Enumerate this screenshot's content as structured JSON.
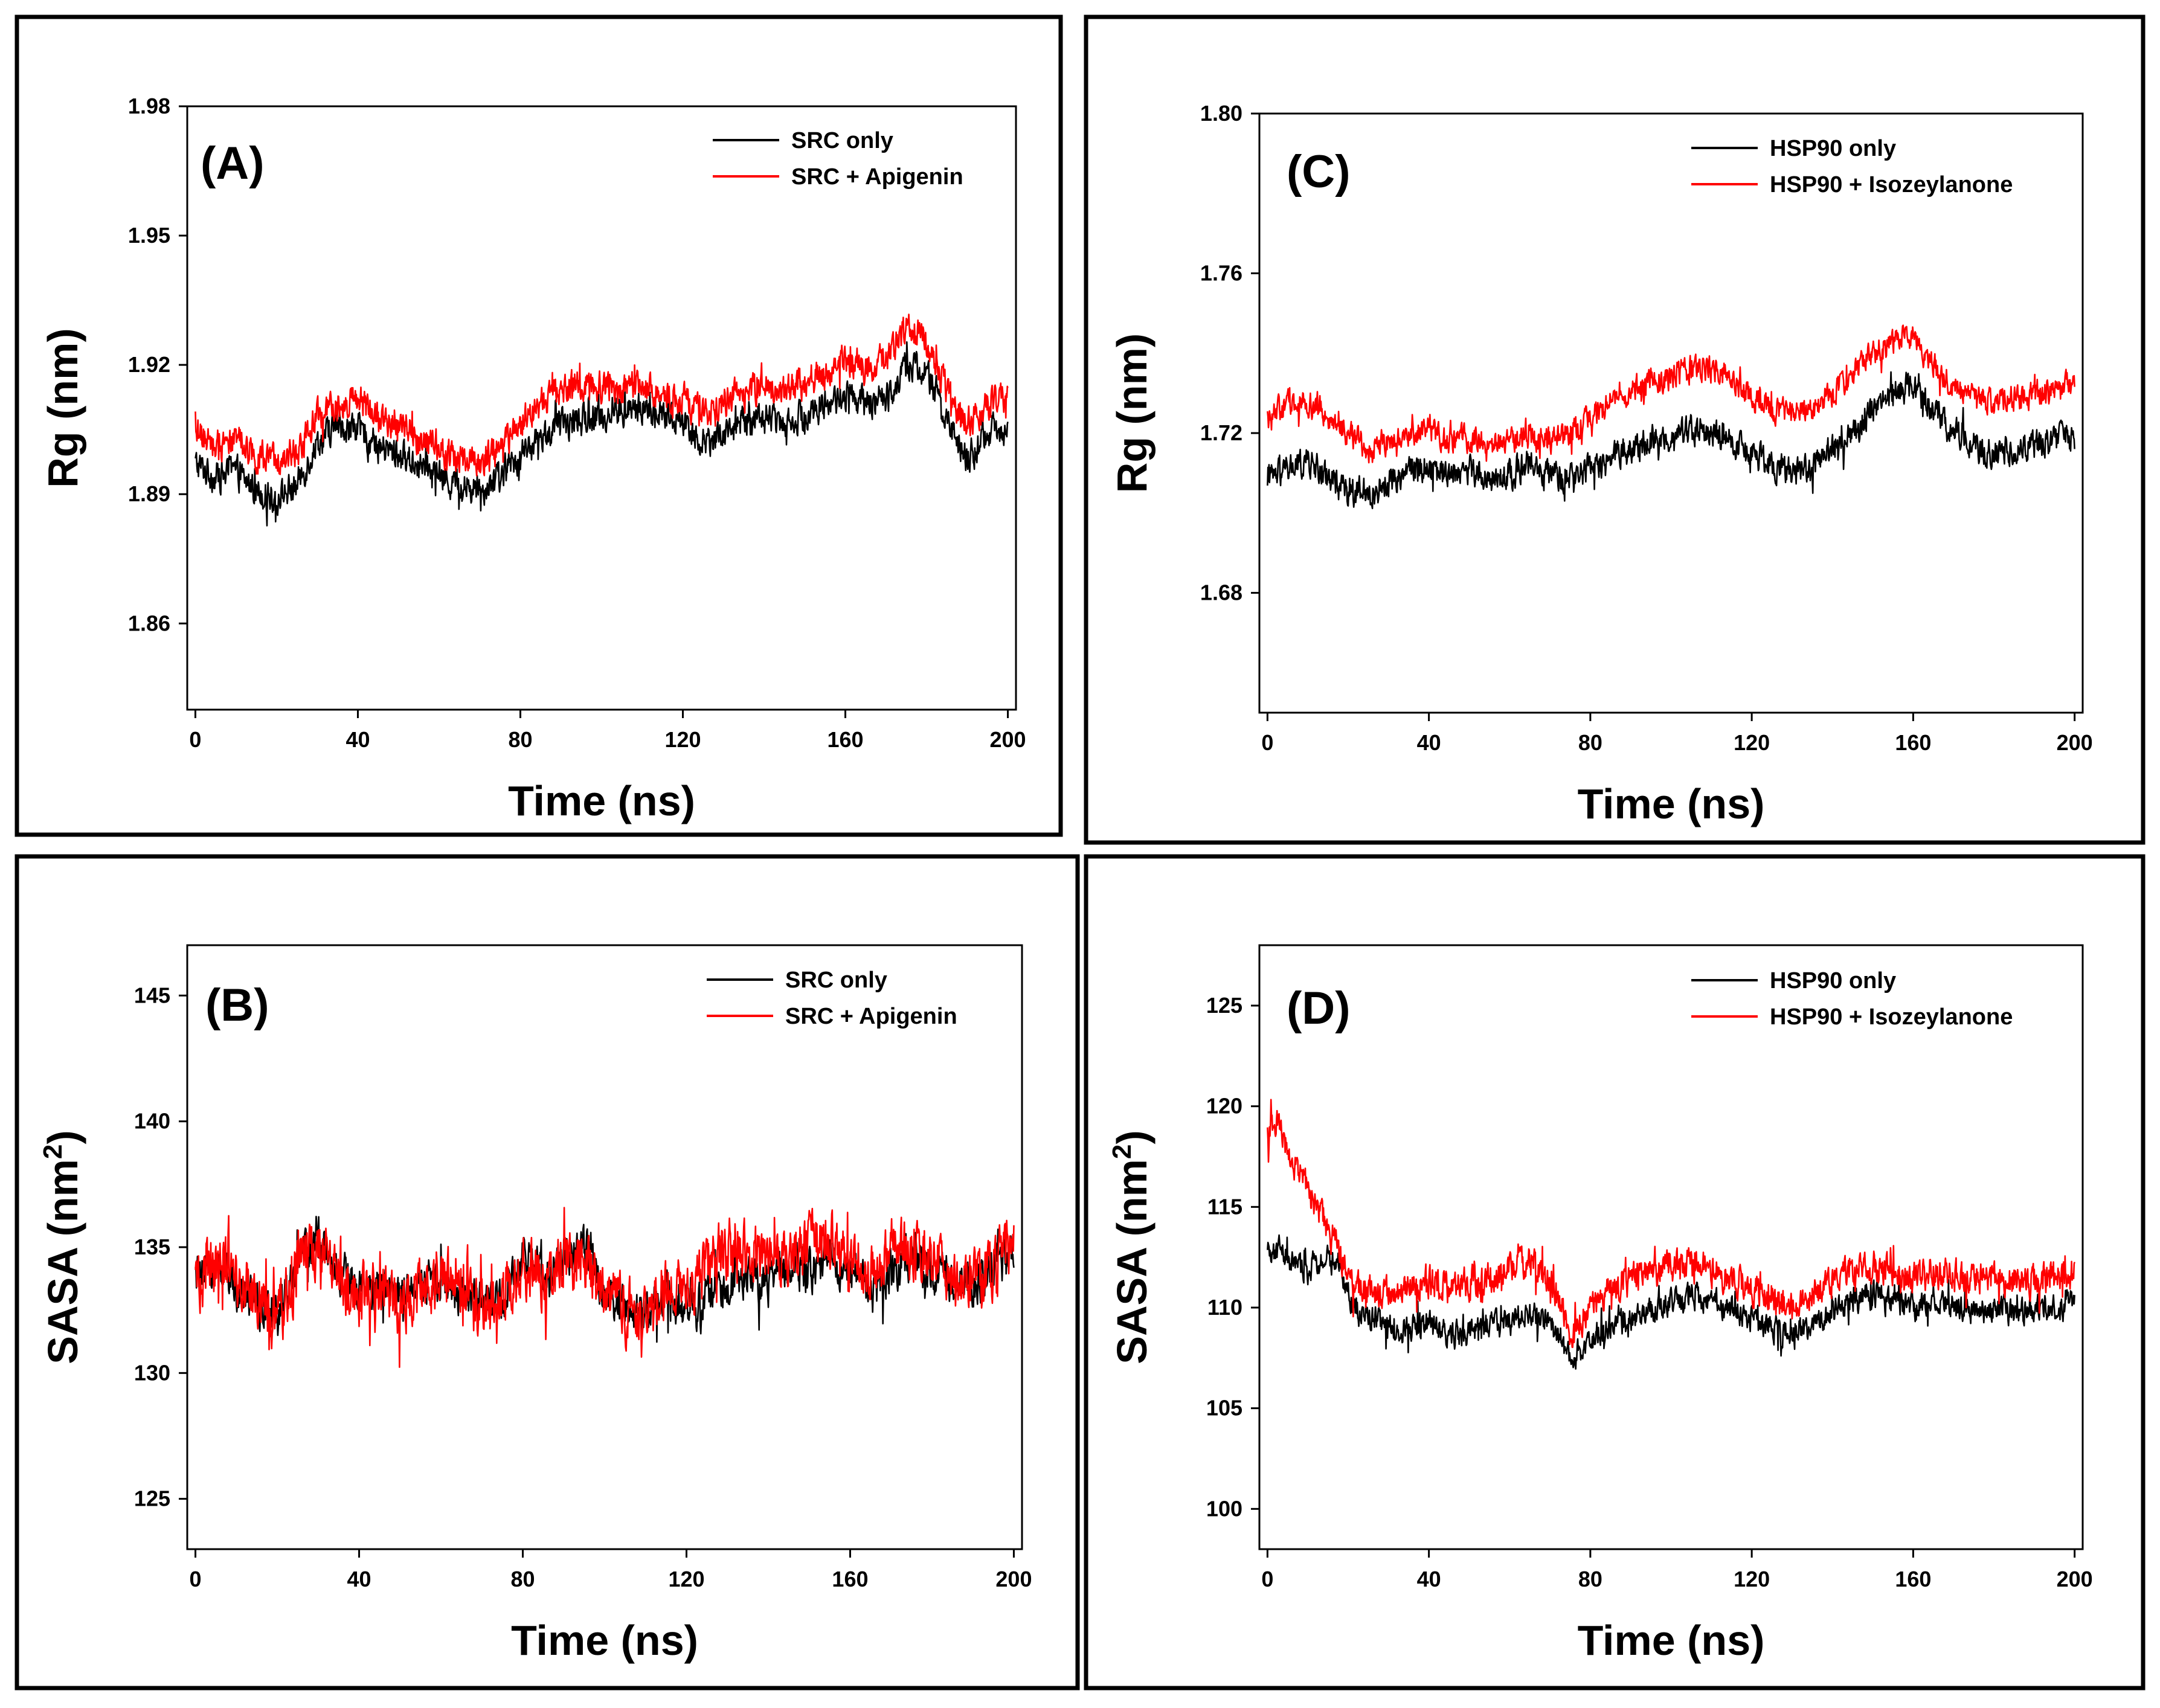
{
  "figure": {
    "background": "#ffffff"
  },
  "colors": {
    "series_1": "#000000",
    "series_2": "#ff0000"
  },
  "chart_data": [
    {
      "id": "A",
      "type": "line",
      "panel_label": "(A)",
      "xlabel": "Time (ns)",
      "ylabel_main": "Rg (nm)",
      "ylabel_sup": "",
      "ylabel_close": "",
      "xlim": [
        -2,
        202
      ],
      "ylim": [
        1.84,
        1.98
      ],
      "xticks": [
        0,
        40,
        80,
        120,
        160,
        200
      ],
      "xtick_labels": [
        "0",
        "40",
        "80",
        "120",
        "160",
        "200"
      ],
      "yticks": [
        1.86,
        1.89,
        1.92,
        1.95,
        1.98
      ],
      "ytick_labels": [
        "1.86",
        "1.89",
        "1.92",
        "1.95",
        "1.98"
      ],
      "legend": [
        "SRC only",
        "SRC + Apigenin"
      ],
      "series": [
        {
          "name": "SRC only",
          "color": "#000000",
          "noise": 0.0055,
          "spike": 0.004,
          "x": [
            0,
            5,
            10,
            15,
            20,
            25,
            30,
            35,
            40,
            45,
            50,
            55,
            60,
            65,
            70,
            75,
            80,
            85,
            90,
            95,
            100,
            105,
            110,
            115,
            120,
            125,
            130,
            135,
            140,
            145,
            150,
            155,
            160,
            165,
            170,
            175,
            180,
            185,
            190,
            195,
            200
          ],
          "values": [
            1.897,
            1.894,
            1.895,
            1.891,
            1.889,
            1.892,
            1.902,
            1.906,
            1.905,
            1.901,
            1.899,
            1.897,
            1.894,
            1.892,
            1.891,
            1.894,
            1.899,
            1.903,
            1.906,
            1.907,
            1.908,
            1.909,
            1.91,
            1.908,
            1.907,
            1.902,
            1.904,
            1.907,
            1.908,
            1.907,
            1.908,
            1.911,
            1.913,
            1.911,
            1.912,
            1.92,
            1.918,
            1.907,
            1.898,
            1.904,
            1.906
          ]
        },
        {
          "name": "SRC + Apigenin",
          "color": "#ff0000",
          "noise": 0.0055,
          "spike": 0.004,
          "x": [
            0,
            5,
            10,
            15,
            20,
            25,
            30,
            35,
            40,
            45,
            50,
            55,
            60,
            65,
            70,
            75,
            80,
            85,
            90,
            95,
            100,
            105,
            110,
            115,
            120,
            125,
            130,
            135,
            140,
            145,
            150,
            155,
            160,
            165,
            170,
            175,
            180,
            185,
            190,
            195,
            200
          ],
          "values": [
            1.904,
            1.902,
            1.903,
            1.899,
            1.897,
            1.9,
            1.908,
            1.911,
            1.912,
            1.908,
            1.906,
            1.903,
            1.9,
            1.898,
            1.897,
            1.9,
            1.906,
            1.911,
            1.914,
            1.915,
            1.915,
            1.914,
            1.915,
            1.913,
            1.912,
            1.908,
            1.911,
            1.914,
            1.915,
            1.914,
            1.916,
            1.918,
            1.921,
            1.919,
            1.921,
            1.929,
            1.926,
            1.914,
            1.906,
            1.911,
            1.913
          ]
        }
      ]
    },
    {
      "id": "C",
      "type": "line",
      "panel_label": "(C)",
      "xlabel": "Time (ns)",
      "ylabel_main": "Rg (nm)",
      "ylabel_sup": "",
      "ylabel_close": "",
      "xlim": [
        -2,
        202
      ],
      "ylim": [
        1.65,
        1.8
      ],
      "xticks": [
        0,
        40,
        80,
        120,
        160,
        200
      ],
      "xtick_labels": [
        "0",
        "40",
        "80",
        "120",
        "160",
        "200"
      ],
      "yticks": [
        1.68,
        1.72,
        1.76,
        1.8
      ],
      "ytick_labels": [
        "1.68",
        "1.72",
        "1.76",
        "1.80"
      ],
      "legend": [
        "HSP90 only",
        "HSP90 + Isozeylanone"
      ],
      "series": [
        {
          "name": "HSP90 only",
          "color": "#000000",
          "noise": 0.0055,
          "spike": 0.004,
          "x": [
            0,
            5,
            10,
            15,
            20,
            25,
            30,
            35,
            40,
            45,
            50,
            55,
            60,
            65,
            70,
            75,
            80,
            85,
            90,
            95,
            100,
            105,
            110,
            115,
            120,
            125,
            130,
            135,
            140,
            145,
            150,
            155,
            160,
            165,
            170,
            175,
            180,
            185,
            190,
            195,
            200
          ],
          "values": [
            1.708,
            1.711,
            1.713,
            1.709,
            1.706,
            1.704,
            1.708,
            1.711,
            1.712,
            1.71,
            1.711,
            1.708,
            1.71,
            1.712,
            1.709,
            1.708,
            1.711,
            1.714,
            1.716,
            1.718,
            1.719,
            1.721,
            1.72,
            1.718,
            1.714,
            1.712,
            1.71,
            1.712,
            1.716,
            1.72,
            1.726,
            1.73,
            1.732,
            1.726,
            1.72,
            1.717,
            1.715,
            1.716,
            1.717,
            1.718,
            1.719
          ]
        },
        {
          "name": "HSP90 + Isozeylanone",
          "color": "#ff0000",
          "noise": 0.005,
          "spike": 0.004,
          "x": [
            0,
            5,
            10,
            15,
            20,
            25,
            30,
            35,
            40,
            45,
            50,
            55,
            60,
            65,
            70,
            75,
            80,
            85,
            90,
            95,
            100,
            105,
            110,
            115,
            120,
            125,
            130,
            135,
            140,
            145,
            150,
            155,
            160,
            165,
            170,
            175,
            180,
            185,
            190,
            195,
            200
          ],
          "values": [
            1.724,
            1.727,
            1.728,
            1.724,
            1.72,
            1.716,
            1.718,
            1.72,
            1.721,
            1.718,
            1.719,
            1.717,
            1.718,
            1.719,
            1.718,
            1.72,
            1.724,
            1.728,
            1.731,
            1.733,
            1.734,
            1.736,
            1.736,
            1.734,
            1.729,
            1.726,
            1.724,
            1.726,
            1.73,
            1.735,
            1.74,
            1.743,
            1.744,
            1.737,
            1.731,
            1.729,
            1.728,
            1.729,
            1.73,
            1.731,
            1.732
          ]
        }
      ]
    },
    {
      "id": "B",
      "type": "line",
      "panel_label": "(B)",
      "xlabel": "Time (ns)",
      "ylabel_main": "SASA (nm",
      "ylabel_sup": "2",
      "ylabel_close": ")",
      "xlim": [
        -2,
        202
      ],
      "ylim": [
        123,
        147
      ],
      "xticks": [
        0,
        40,
        80,
        120,
        160,
        200
      ],
      "xtick_labels": [
        "0",
        "40",
        "80",
        "120",
        "160",
        "200"
      ],
      "yticks": [
        125,
        130,
        135,
        140,
        145
      ],
      "ytick_labels": [
        "125",
        "130",
        "135",
        "140",
        "145"
      ],
      "legend": [
        "SRC only",
        "SRC + Apigenin"
      ],
      "series": [
        {
          "name": "SRC only",
          "color": "#000000",
          "noise": 1.3,
          "spike": 1.2,
          "x": [
            0,
            5,
            10,
            15,
            20,
            25,
            30,
            35,
            40,
            45,
            50,
            55,
            60,
            65,
            70,
            75,
            80,
            85,
            90,
            95,
            100,
            105,
            110,
            115,
            120,
            125,
            130,
            135,
            140,
            145,
            150,
            155,
            160,
            165,
            170,
            175,
            180,
            185,
            190,
            195,
            200
          ],
          "values": [
            133.8,
            134.2,
            133.5,
            132.8,
            132.2,
            134.5,
            135.2,
            134.1,
            133.2,
            133.5,
            132.9,
            133.6,
            133.8,
            133.1,
            132.6,
            133.0,
            134.5,
            133.9,
            134.8,
            135.0,
            133.2,
            132.6,
            132.1,
            133.3,
            132.5,
            133.0,
            133.4,
            134.0,
            133.5,
            134.2,
            134.0,
            134.6,
            133.9,
            133.2,
            134.1,
            134.5,
            134.0,
            133.7,
            133.5,
            134.0,
            135.0
          ]
        },
        {
          "name": "SRC + Apigenin",
          "color": "#ff0000",
          "noise": 1.8,
          "spike": 1.8,
          "x": [
            0,
            5,
            10,
            15,
            20,
            25,
            30,
            35,
            40,
            45,
            50,
            55,
            60,
            65,
            70,
            75,
            80,
            85,
            90,
            95,
            100,
            105,
            110,
            115,
            120,
            125,
            130,
            135,
            140,
            145,
            150,
            155,
            160,
            165,
            170,
            175,
            180,
            185,
            190,
            195,
            200
          ],
          "values": [
            133.5,
            134.3,
            133.8,
            132.9,
            132.0,
            134.2,
            135.0,
            133.8,
            133.0,
            133.4,
            132.7,
            133.4,
            133.9,
            133.0,
            132.4,
            132.8,
            134.2,
            133.6,
            134.3,
            134.6,
            133.0,
            132.5,
            132.0,
            133.5,
            133.2,
            134.4,
            134.8,
            135.0,
            134.2,
            134.8,
            135.1,
            135.4,
            134.5,
            133.8,
            134.6,
            135.0,
            134.4,
            133.9,
            133.6,
            134.2,
            135.3
          ]
        }
      ]
    },
    {
      "id": "D",
      "type": "line",
      "panel_label": "(D)",
      "xlabel": "Time (ns)",
      "ylabel_main": "SASA (nm",
      "ylabel_sup": "2",
      "ylabel_close": ")",
      "xlim": [
        -2,
        202
      ],
      "ylim": [
        98,
        128
      ],
      "xticks": [
        0,
        40,
        80,
        120,
        160,
        200
      ],
      "xtick_labels": [
        "0",
        "40",
        "80",
        "120",
        "160",
        "200"
      ],
      "yticks": [
        100,
        105,
        110,
        115,
        120,
        125
      ],
      "ytick_labels": [
        "100",
        "105",
        "110",
        "115",
        "120",
        "125"
      ],
      "legend": [
        "HSP90 only",
        "HSP90 + Isozeylanone"
      ],
      "series": [
        {
          "name": "HSP90 only",
          "color": "#000000",
          "noise": 1.0,
          "spike": 1.0,
          "x": [
            0,
            3,
            6,
            10,
            14,
            18,
            22,
            26,
            30,
            35,
            40,
            45,
            50,
            55,
            60,
            65,
            70,
            75,
            80,
            85,
            90,
            95,
            100,
            105,
            110,
            115,
            120,
            125,
            130,
            135,
            140,
            145,
            150,
            155,
            160,
            165,
            170,
            175,
            180,
            185,
            190,
            195,
            200
          ],
          "values": [
            112.5,
            113.0,
            112.2,
            111.8,
            112.6,
            112.0,
            109.8,
            109.5,
            109.0,
            108.9,
            109.2,
            108.6,
            108.8,
            109.1,
            109.3,
            109.6,
            109.2,
            107.5,
            108.4,
            109.0,
            109.5,
            109.8,
            110.3,
            110.6,
            110.4,
            109.9,
            109.5,
            109.0,
            108.6,
            109.2,
            109.8,
            110.4,
            110.6,
            110.2,
            110.0,
            110.3,
            110.1,
            109.8,
            110.0,
            109.7,
            109.9,
            110.0,
            110.2
          ]
        },
        {
          "name": "HSP90 + Isozeylanone",
          "color": "#ff0000",
          "noise": 1.2,
          "spike": 1.2,
          "x": [
            0,
            3,
            6,
            10,
            14,
            18,
            22,
            26,
            30,
            35,
            40,
            45,
            50,
            55,
            60,
            65,
            70,
            75,
            80,
            85,
            90,
            95,
            100,
            105,
            110,
            115,
            120,
            125,
            130,
            135,
            140,
            145,
            150,
            155,
            160,
            165,
            170,
            175,
            180,
            185,
            190,
            195,
            200
          ],
          "values": [
            118.5,
            119.0,
            117.4,
            115.8,
            114.4,
            112.6,
            110.9,
            110.8,
            110.7,
            111.0,
            111.3,
            110.9,
            111.2,
            111.5,
            111.9,
            112.3,
            111.4,
            108.8,
            110.0,
            110.9,
            111.3,
            111.8,
            112.1,
            112.3,
            111.9,
            111.4,
            110.9,
            110.5,
            109.9,
            110.6,
            111.3,
            112.1,
            112.0,
            111.7,
            111.5,
            111.8,
            111.6,
            111.4,
            111.5,
            111.3,
            111.4,
            111.5,
            111.7
          ]
        }
      ]
    }
  ]
}
